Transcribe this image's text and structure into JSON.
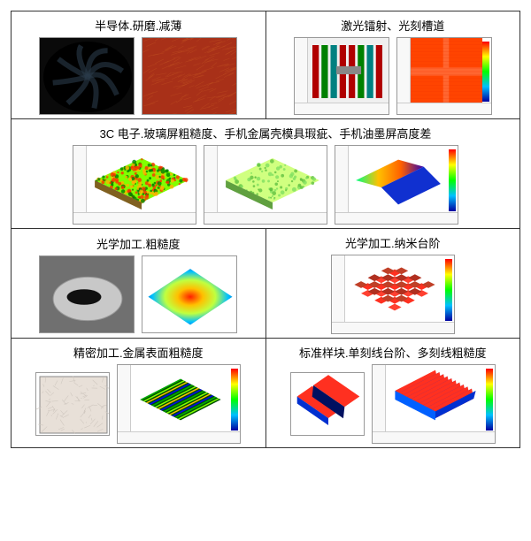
{
  "colors": {
    "border": "#333333",
    "axisBg": "#f8f8f8",
    "axisBorder": "#cccccc",
    "heatmap": [
      "#0000a0",
      "#00c0ff",
      "#00ff00",
      "#ffff00",
      "#ff0000"
    ]
  },
  "rows": [
    {
      "cells": [
        {
          "title": "半导体.研磨.减薄",
          "images": [
            {
              "kind": "swirl",
              "bg": "#0a0a0a",
              "swirlColor": "#2a3a4a"
            },
            {
              "kind": "noise",
              "base": "#a83018",
              "overlay": "#c05020"
            }
          ]
        },
        {
          "title": "激光镭射、光刻槽道",
          "images": [
            {
              "kind": "laser",
              "bg": "#f0f0f0",
              "trackColors": [
                "#b00000",
                "#008000",
                "#008080",
                "#b00000"
              ],
              "axis": true
            },
            {
              "kind": "chip",
              "bg": "#ff4400",
              "lineColor": "#ee3300",
              "axis": true,
              "cbar": true
            }
          ]
        }
      ]
    },
    {
      "cells": [
        {
          "span": 2,
          "title": "3C 电子.玻璃屏粗糙度、手机金属壳模具瑕疵、手机油墨屏高度差",
          "images": [
            {
              "kind": "3d-rough",
              "colors": [
                "#80ff00",
                "#ffb000",
                "#ff3000",
                "#008000"
              ],
              "axis": true,
              "wide": true
            },
            {
              "kind": "3d-smooth",
              "colors": [
                "#d0ff80",
                "#80e060",
                "#60c040"
              ],
              "axis": true,
              "wide": true
            },
            {
              "kind": "3d-fold",
              "leftColors": [
                "#00ff80",
                "#ffc000",
                "#ff6000",
                "#3000b0"
              ],
              "rightColor": "#1030d0",
              "axis": true,
              "cbar": true,
              "wide": true
            }
          ]
        }
      ]
    },
    {
      "cells": [
        {
          "title": "光学加工.粗糙度",
          "images": [
            {
              "kind": "lens",
              "bg": "#707070",
              "lens": "#c8c8c8",
              "dark": "#101010"
            },
            {
              "kind": "radial",
              "colors": [
                "#ff2000",
                "#ffc000",
                "#c0ff40",
                "#00c0ff",
                "#0040c0"
              ]
            }
          ]
        },
        {
          "title": "光学加工.纳米台阶",
          "images": [
            {
              "kind": "3d-waffle",
              "colors": [
                "#ff3020",
                "#c04028",
                "#ff4030",
                "#b03020"
              ],
              "axis": true,
              "cbar": true,
              "wide": true
            }
          ]
        }
      ]
    },
    {
      "cells": [
        {
          "title": "精密加工.金属表面粗糙度",
          "images": [
            {
              "kind": "metal",
              "bg": "#e8e0d8",
              "fiber": "#d0c8c0",
              "small": true
            },
            {
              "kind": "3d-stripes",
              "colors": [
                "#005000",
                "#00b000",
                "#80ff00",
                "#ffc000",
                "#0000ff"
              ],
              "axis": true,
              "cbar": true,
              "wide": true
            }
          ]
        },
        {
          "title": "标准样块.单刻线台阶、多刻线粗糙度",
          "images": [
            {
              "kind": "slot",
              "top": "#ff3020",
              "bottom": "#0030d0",
              "slot": "#001060",
              "small": true
            },
            {
              "kind": "corrugated",
              "colors": [
                "#ff3020",
                "#0030d0",
                "#0060ff"
              ],
              "axis": true,
              "cbar": true,
              "wide": true
            }
          ]
        }
      ]
    }
  ]
}
